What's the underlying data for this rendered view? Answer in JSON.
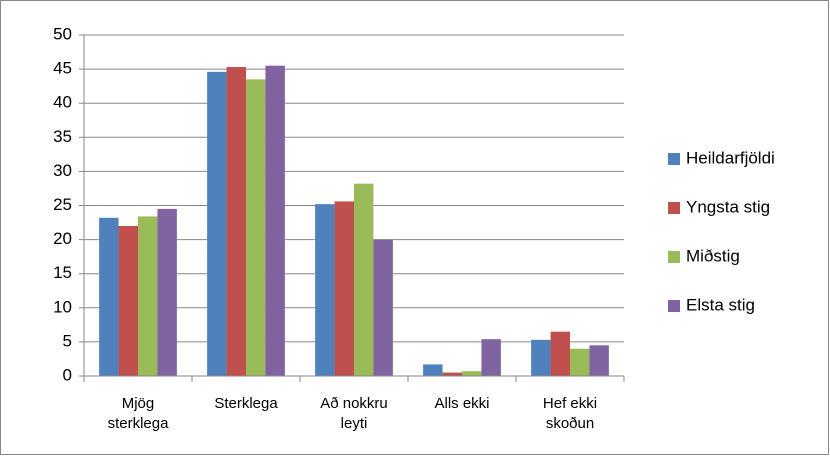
{
  "chart_data": {
    "type": "bar",
    "categories": [
      "Mjög\nsterklega",
      "Sterklega",
      "Að nokkru\nleyti",
      "Alls ekki",
      "Hef ekki\nskoðun"
    ],
    "series": [
      {
        "name": "Heildarfjöldi",
        "color": "#4f81bd",
        "values": [
          23.2,
          44.6,
          25.2,
          1.7,
          5.3
        ]
      },
      {
        "name": "Yngsta stig",
        "color": "#c0504d",
        "values": [
          22,
          45.3,
          25.6,
          0.5,
          6.5
        ]
      },
      {
        "name": "Miðstig",
        "color": "#9bbb59",
        "values": [
          23.4,
          43.5,
          28.2,
          0.7,
          4
        ]
      },
      {
        "name": "Elsta stig",
        "color": "#8064a2",
        "values": [
          24.5,
          45.5,
          20,
          5.4,
          4.5
        ]
      }
    ],
    "ylim": [
      0,
      50
    ],
    "yticks": [
      0,
      5,
      10,
      15,
      20,
      25,
      30,
      35,
      40,
      45,
      50
    ],
    "grid": true,
    "legend": "right"
  }
}
